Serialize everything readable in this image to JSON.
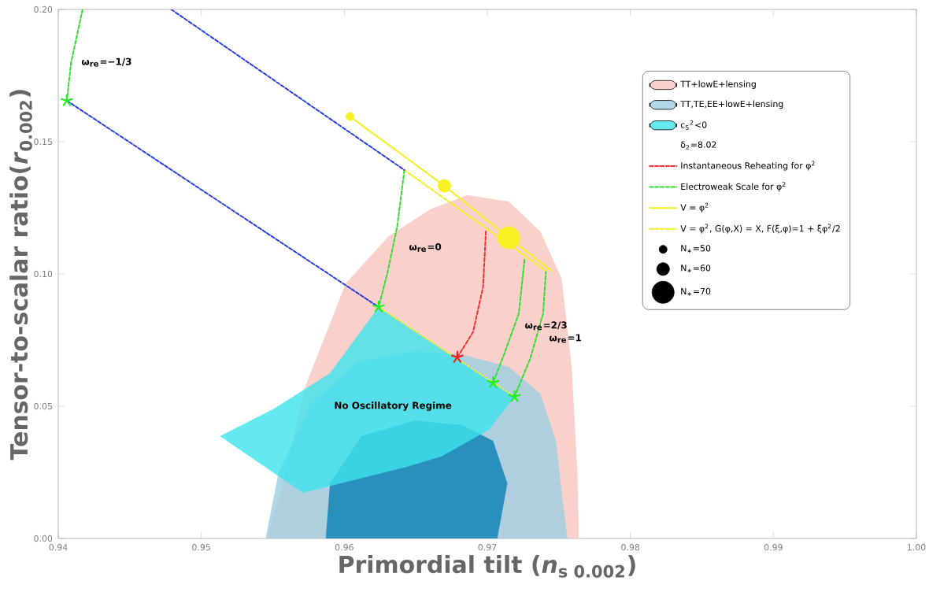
{
  "chart_data": {
    "type": "line",
    "xlabel": "Primordial tilt (*n*$_{s 0.002}$)",
    "ylabel": "Tensor-to-scalar ratio(*r*$_{0.002}$)",
    "xlim": [
      0.94,
      1.0
    ],
    "ylim": [
      0,
      0.2
    ],
    "xticks": [
      0.94,
      0.95,
      0.96,
      0.97,
      0.98,
      0.99,
      {
        "value": 1.0,
        "label": "1.00"
      }
    ],
    "yticks": [
      {
        "value": 0,
        "label": "0.00"
      },
      {
        "value": 0.05,
        "label": "0.05"
      },
      {
        "value": 0.1,
        "label": "0.10"
      },
      {
        "value": 0.15,
        "label": "0.15"
      },
      {
        "value": 0.2,
        "label": "0.20"
      }
    ],
    "legend": "top right",
    "size_legend": [
      {
        "value": 0.13,
        "label": "N$_{∗}$=50"
      },
      {
        "value": 0.33,
        "label": "N$_{∗}$=60"
      },
      {
        "value": 1,
        "label": "N$_{∗}$=70"
      }
    ],
    "series": [
      {
        "type": "area",
        "name": "TT+lowE+lensing",
        "color": "#f8c6bd",
        "x": [
          0.9546,
          0.9557,
          0.9572,
          0.9601,
          0.9631,
          0.966,
          0.9686,
          0.9715,
          0.9737,
          0.9752,
          0.9759,
          0.9763,
          0.9764
        ],
        "values": [
          0,
          0.0208,
          0.0565,
          0.0964,
          0.1143,
          0.1244,
          0.1298,
          0.1274,
          0.1161,
          0.0982,
          0.0649,
          0.025,
          0
        ]
      },
      {
        "type": "area",
        "name": "TT,TE,EE+lowE+lensing",
        "color": "#9ccde2",
        "x": [
          0.9545,
          0.9554,
          0.9576,
          0.9609,
          0.9649,
          0.9682,
          0.9715,
          0.9737,
          0.9748,
          0.9752,
          0.9756
        ],
        "values": [
          0,
          0.025,
          0.0506,
          0.0667,
          0.0708,
          0.0696,
          0.0649,
          0.0548,
          0.0369,
          0.0173,
          0
        ]
      },
      {
        "type": "area",
        "color": "#0a80b4",
        "x": [
          0.9587,
          0.959,
          0.9612,
          0.9649,
          0.9682,
          0.9704,
          0.9714,
          0.9707
        ],
        "values": [
          0,
          0.0208,
          0.0387,
          0.0446,
          0.0429,
          0.0369,
          0.0208,
          0
        ]
      },
      {
        "type": "area",
        "name": "c$_{S}$$^{2}$<0",
        "color": "#3fe4ee",
        "x": [
          0.9513,
          0.955,
          0.959,
          0.9624,
          0.9719,
          0.9701,
          0.9668,
          0.9642,
          0.9571
        ],
        "values": [
          0.0387,
          0.0488,
          0.0625,
          0.0875,
          0.0536,
          0.0411,
          0.031,
          0.0268,
          0.0173
        ]
      },
      {
        "name": "Instantaneous Reheating for φ$^{2}$",
        "color": "#f03030",
        "line_style": "dashed",
        "x": [
          0.9699,
          0.9697,
          0.969,
          0.9679
        ],
        "values": [
          0.1161,
          0.095,
          0.078,
          0.0685
        ]
      },
      {
        "name": "Electroweak Scale for φ$^{2}$",
        "color": "#33dd33",
        "line_style": "dashed",
        "x": [
          0.9417,
          0.9409,
          0.9406,
          null,
          0.9642,
          0.9637,
          0.963,
          0.9624,
          null,
          0.9726,
          0.9722,
          0.9712,
          0.9704,
          null,
          0.9741,
          0.9739,
          0.973,
          0.9719
        ],
        "values": [
          0.2,
          0.18,
          0.1655,
          null,
          0.1393,
          0.118,
          0.1,
          0.0875,
          null,
          0.1054,
          0.085,
          0.07,
          0.0589,
          null,
          0.1012,
          0.085,
          0.068,
          0.0536
        ]
      },
      {
        "name": "V = φ$^{2}$",
        "color": "#f2f020",
        "x": [
          0.9604,
          0.967,
          0.9715,
          0.9745
        ],
        "values": [
          0.1595,
          0.1333,
          0.1137,
          0.1012
        ]
      },
      {
        "name": "V = φ$^{2}$, G(φ,X) = X, F(ξ,φ)=1 + ξφ$^{2}$/2",
        "color": "#f2f020",
        "line_style": "dashed",
        "x": [
          0.9642,
          0.9741
        ],
        "values": [
          0.1393,
          0.1012
        ]
      },
      {
        "color": "#2a3fe0",
        "line_style": "dashed",
        "x": [
          0.9479,
          0.9642
        ],
        "values": [
          0.2,
          0.1393
        ]
      },
      {
        "color": "#2a3fe0",
        "line_style": "dashed",
        "x": [
          0.9406,
          0.9624
        ],
        "values": [
          0.1655,
          0.0875
        ]
      },
      {
        "color": "#f2f020",
        "line_style": "dotted",
        "x": [
          0.9624,
          0.9719
        ],
        "values": [
          0.0875,
          0.0536
        ]
      },
      {
        "type": "bubble",
        "color": "#f8f020",
        "x": [
          0.9604,
          0.967,
          0.9715
        ],
        "values": [
          0.1595,
          0.1333,
          0.1137
        ],
        "sizes": [
          0.13,
          0.33,
          1
        ]
      },
      {
        "type": "scatter",
        "color": "#22ee22",
        "marker": "cross",
        "x": [
          0.9406,
          0.9624,
          0.9704,
          0.9719
        ],
        "values": [
          0.1655,
          0.0875,
          0.0589,
          0.0536
        ]
      },
      {
        "type": "scatter",
        "color": "#ee2020",
        "marker": "cross",
        "x": [
          0.9679
        ],
        "values": [
          0.0685
        ]
      }
    ],
    "annotations": [
      "δ$_{2}$=8.02",
      "No Oscillatory Regime",
      {
        "text": "ω$_{re}$=−1/3",
        "x": 0.9409,
        "y": 0.18
      },
      {
        "text": "ω$_{re}$=0",
        "x": 0.9638,
        "y": 0.11
      },
      {
        "text": "ω$_{re}$=2/3",
        "x": 0.9719,
        "y": 0.0804
      },
      {
        "text": "ω$_{re}$=1",
        "x": 0.9736,
        "y": 0.0756
      }
    ]
  }
}
